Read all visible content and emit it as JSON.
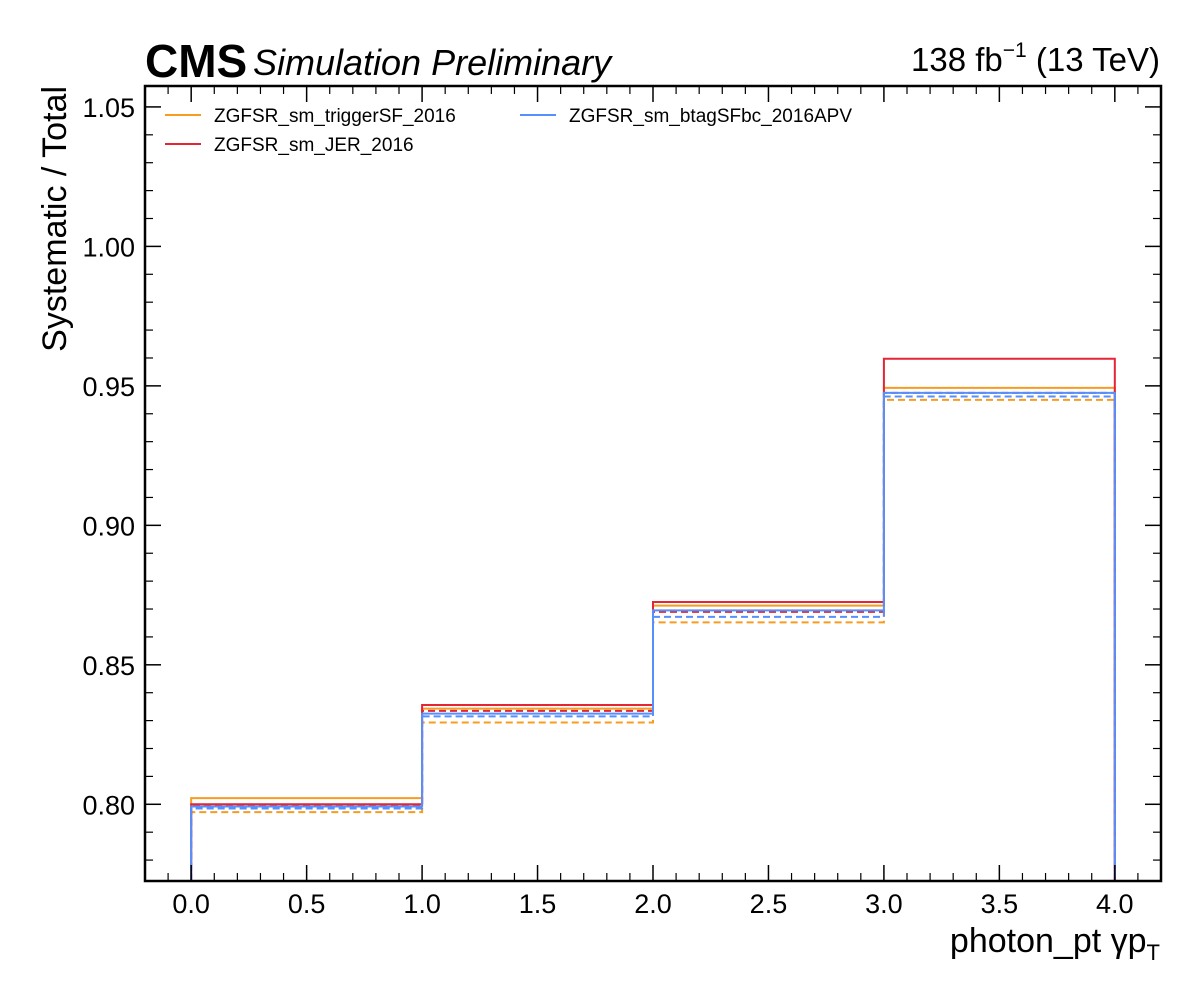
{
  "header": {
    "experiment": "CMS",
    "status": "Simulation Preliminary",
    "lumi_value": "138 fb",
    "lumi_exponent": "−1",
    "energy": " (13 TeV)"
  },
  "chart_data": {
    "type": "line",
    "style": "step",
    "xlabel": "photon_pt   γp",
    "xlabel_sub": "T",
    "ylabel": "Systematic / Total",
    "xlim": [
      -0.2,
      4.2
    ],
    "ylim": [
      0.7725,
      1.0575
    ],
    "xticks": [
      0.0,
      0.5,
      1.0,
      1.5,
      2.0,
      2.5,
      3.0,
      3.5,
      4.0
    ],
    "xtick_labels": [
      "0.0",
      "0.5",
      "1.0",
      "1.5",
      "2.0",
      "2.5",
      "3.0",
      "3.5",
      "4.0"
    ],
    "yticks": [
      0.8,
      0.85,
      0.9,
      0.95,
      1.0,
      1.05
    ],
    "ytick_labels": [
      "0.80",
      "0.85",
      "0.90",
      "0.95",
      "1.00",
      "1.05"
    ],
    "bin_edges": [
      0,
      1,
      2,
      3,
      4
    ],
    "legend_position": "top-left",
    "series": [
      {
        "name": "ZGFSR_sm_triggerSF_2016",
        "color": "#f89c20",
        "up": [
          0.8022,
          0.8343,
          0.8712,
          0.9493
        ],
        "down": [
          0.7972,
          0.8293,
          0.8652,
          0.945
        ]
      },
      {
        "name": "ZGFSR_sm_JER_2016",
        "color": "#e42536",
        "up": [
          0.8,
          0.8356,
          0.8725,
          0.9597
        ],
        "down": [
          0.7995,
          0.8335,
          0.869,
          0.9475
        ]
      },
      {
        "name": "ZGFSR_sm_btagSFbc_2016APV",
        "color": "#5790fc",
        "up": [
          0.7992,
          0.8325,
          0.8695,
          0.9475
        ],
        "down": [
          0.7985,
          0.8315,
          0.8672,
          0.9462
        ]
      }
    ]
  }
}
